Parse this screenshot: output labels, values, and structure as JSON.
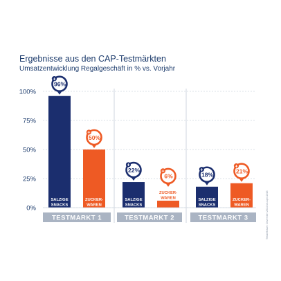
{
  "chart_data": {
    "type": "bar",
    "title": "Ergebnisse aus den CAP-Testmärkten",
    "subtitle": "Umsatzentwicklung Regalgeschäft in % vs. Vorjahr",
    "ylim": [
      0,
      100
    ],
    "y_ticks": [
      "0%",
      "25%",
      "50%",
      "75%",
      "100%"
    ],
    "grid": true,
    "groups": [
      {
        "name": "TESTMARKT 1",
        "bars": [
          {
            "label_lines": [
              "SALZIGE",
              "SNACKS"
            ],
            "value": 96,
            "display": "96%",
            "color": "#1b2e6e"
          },
          {
            "label_lines": [
              "ZUCKER-",
              "WAREN"
            ],
            "value": 50,
            "display": "50%",
            "color": "#ee5a24"
          }
        ]
      },
      {
        "name": "TESTMARKT 2",
        "bars": [
          {
            "label_lines": [
              "SALZIGE",
              "SNACKS"
            ],
            "value": 22,
            "display": "22%",
            "color": "#1b2e6e"
          },
          {
            "label_lines": [
              "ZUCKER-",
              "WAREN"
            ],
            "value": 6,
            "display": "6%",
            "color": "#ee5a24"
          }
        ]
      },
      {
        "name": "TESTMARKT 3",
        "bars": [
          {
            "label_lines": [
              "SALZIGE",
              "SNACKS"
            ],
            "value": 18,
            "display": "18%",
            "color": "#1b2e6e"
          },
          {
            "label_lines": [
              "ZUCKER-",
              "WAREN"
            ],
            "value": 21,
            "display": "21%",
            "color": "#ee5a24"
          }
        ]
      }
    ],
    "side_note": "Testzeitraum: Dezember 2014 bis April 2015"
  },
  "colors": {
    "navy": "#1b2e6e",
    "orange": "#ee5a24",
    "text": "#1b3a6b",
    "band": "#aab4c3",
    "grid": "#cfd6df"
  }
}
